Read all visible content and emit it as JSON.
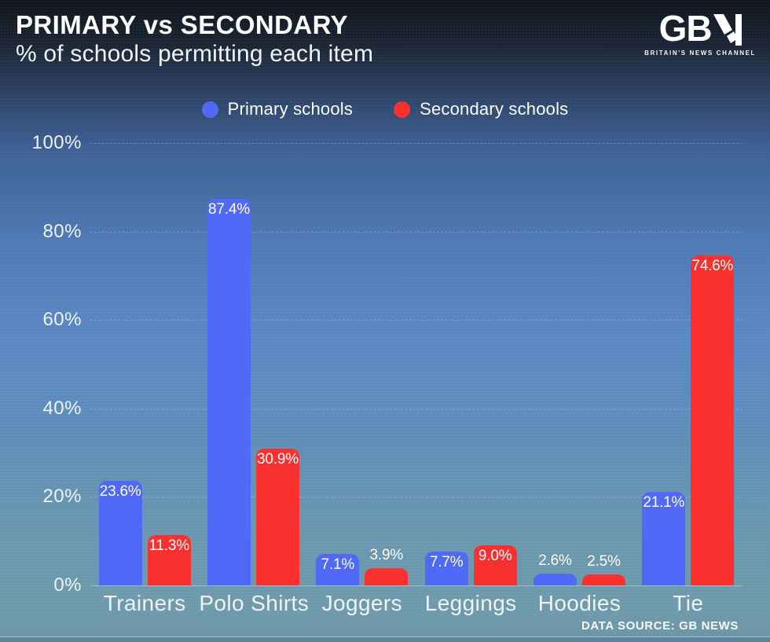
{
  "header": {
    "title": "PRIMARY vs SECONDARY",
    "subtitle": "% of schools permitting each item"
  },
  "logo": {
    "text": "GB",
    "tagline": "BRITAIN'S NEWS CHANNEL"
  },
  "footer": {
    "source": "DATA SOURCE: GB NEWS"
  },
  "chart_data": {
    "type": "bar",
    "title": "PRIMARY vs SECONDARY",
    "subtitle": "% of schools permitting each item",
    "categories": [
      "Trainers",
      "Polo Shirts",
      "Joggers",
      "Leggings",
      "Hoodies",
      "Tie"
    ],
    "series": [
      {
        "name": "Primary schools",
        "color": "#5169f7",
        "values": [
          23.6,
          87.4,
          7.1,
          7.7,
          2.6,
          21.1
        ]
      },
      {
        "name": "Secondary schools",
        "color": "#fb312f",
        "values": [
          11.3,
          30.9,
          3.9,
          9.0,
          2.5,
          74.6
        ]
      }
    ],
    "value_suffix": "%",
    "yticks": [
      0,
      20,
      40,
      60,
      80,
      100
    ],
    "ylim": [
      0,
      100
    ],
    "xlabel": "",
    "ylabel": "",
    "grid": true,
    "legend_position": "top-center"
  }
}
